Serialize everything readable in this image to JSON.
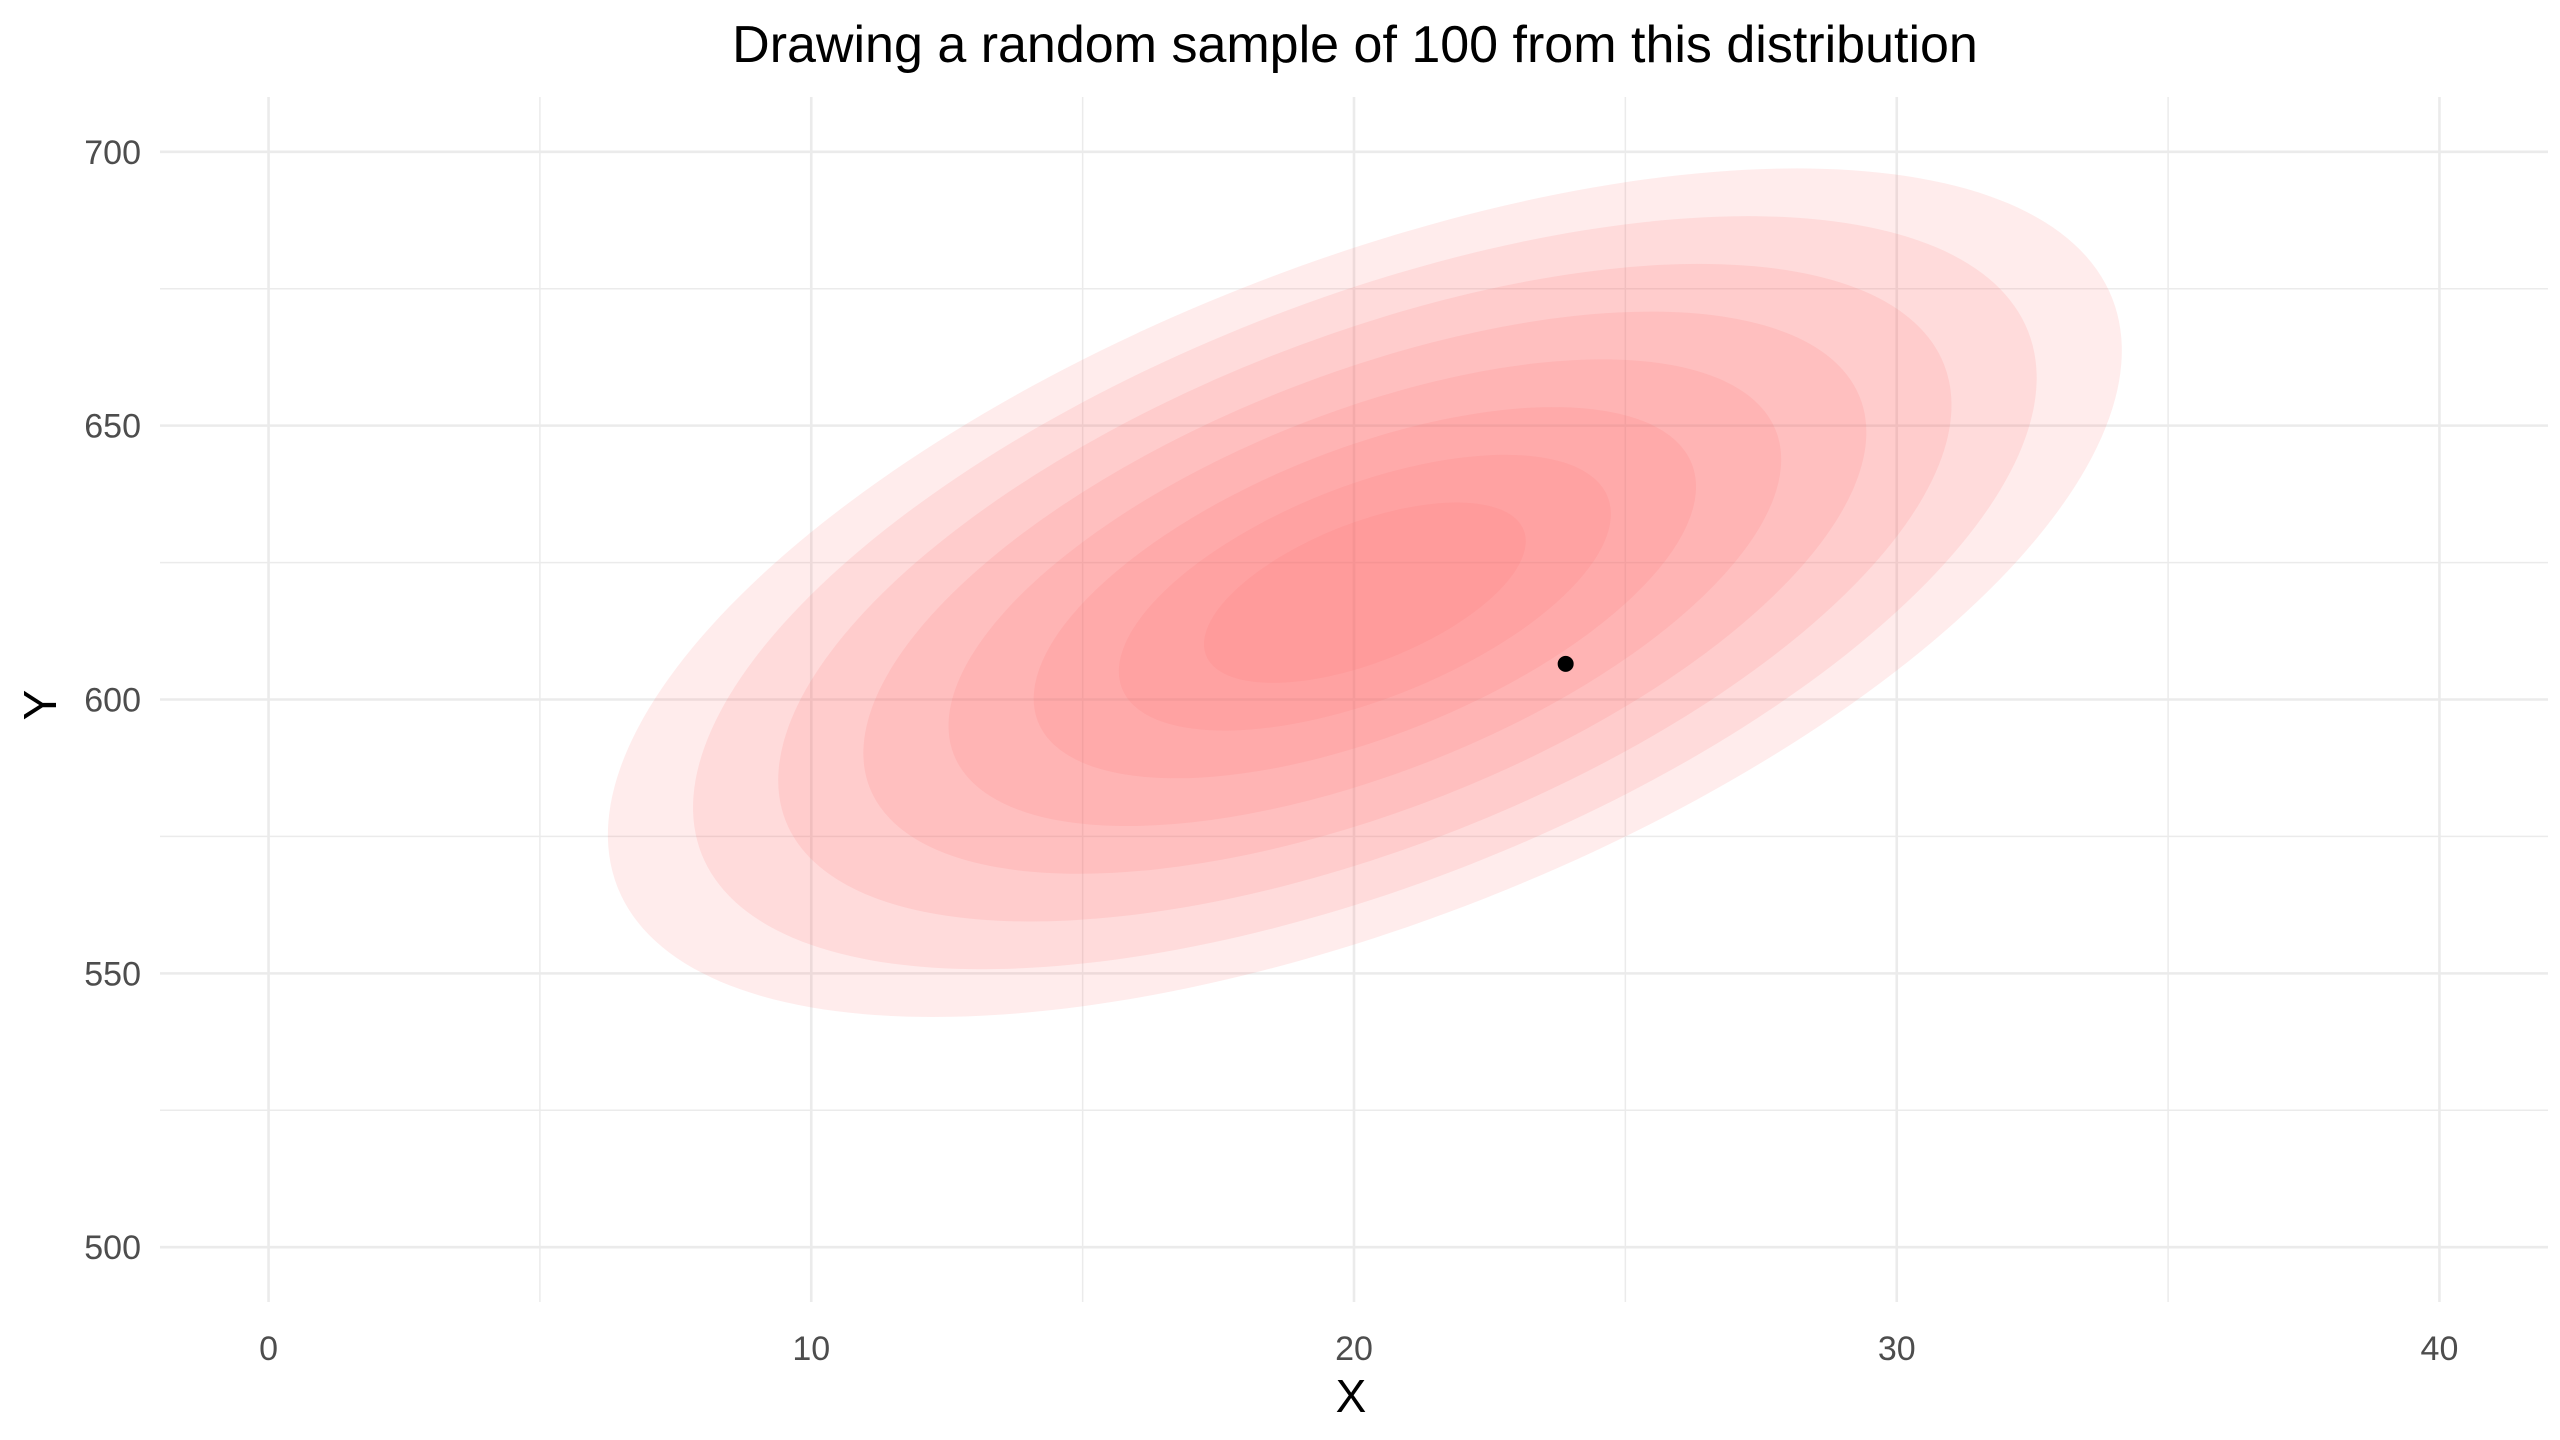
{
  "chart_data": {
    "type": "scatter",
    "title": "Drawing a random sample of 100 from this distribution",
    "xlabel": "X",
    "ylabel": "Y",
    "xlim": [
      -2,
      42
    ],
    "ylim": [
      490,
      710
    ],
    "x_ticks": [
      0,
      10,
      20,
      30,
      40
    ],
    "x_tick_labels": [
      "0",
      "10",
      "20",
      "30",
      "40"
    ],
    "y_ticks": [
      500,
      550,
      600,
      650,
      700
    ],
    "y_tick_labels": [
      "500",
      "550",
      "600",
      "650",
      "700"
    ],
    "grid": true,
    "legend": "none",
    "background": "#ffffff",
    "grid_color": "#ebebeb",
    "tick_label_color": "#4d4d4d",
    "point_color": "#000000",
    "density": {
      "kind": "bivariate-normal-contours",
      "center": {
        "x": 20.2,
        "y": 619.5
      },
      "fill_color": "#ff6f6f",
      "levels": 8,
      "outer_contour": {
        "semi_axis_major": 14.8,
        "semi_axis_minor": 6.05,
        "angle_deg": -21.5
      }
    },
    "points": [
      {
        "x": 23.9,
        "y": 606.5
      }
    ]
  }
}
